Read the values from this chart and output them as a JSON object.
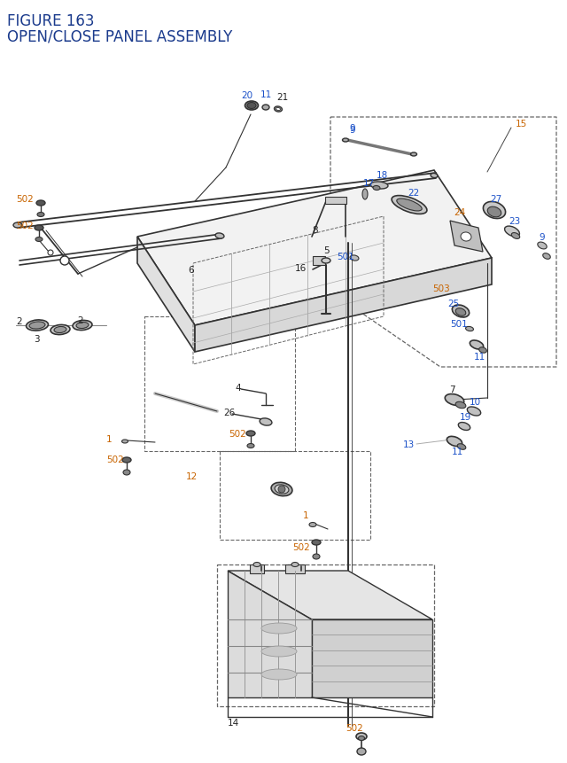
{
  "title_line1": "FIGURE 163",
  "title_line2": "OPEN/CLOSE PANEL ASSEMBLY",
  "title_color": "#1a3a8c",
  "title_fontsize": 12,
  "bg_color": "#ffffff",
  "oc": "#c86400",
  "bc": "#1a50c8",
  "bk": "#222222",
  "fs": 7.5,
  "lc": "#333333",
  "dc": "#666666"
}
